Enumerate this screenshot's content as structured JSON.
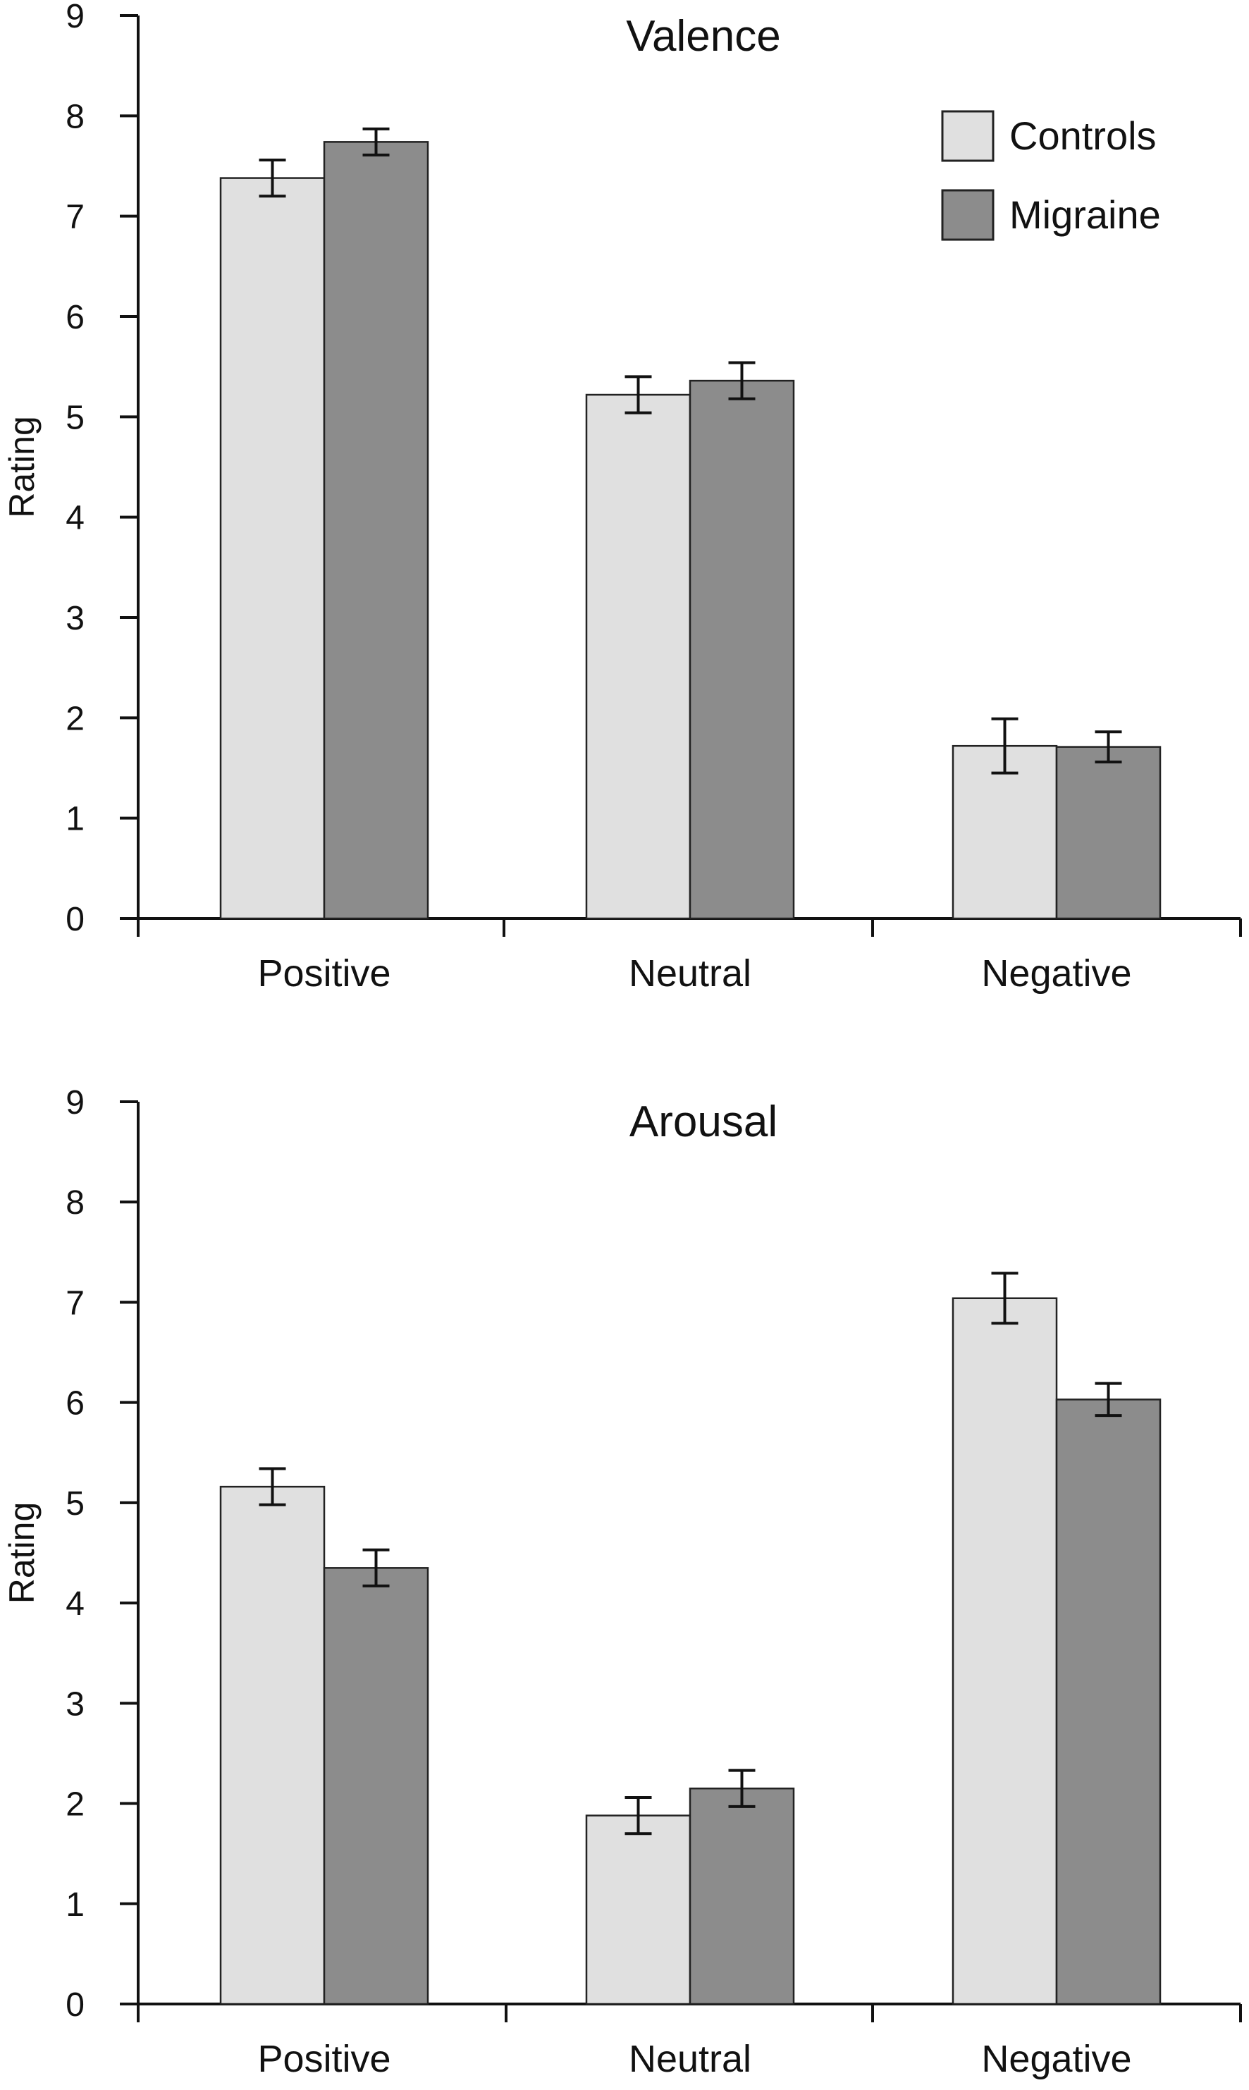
{
  "colors": {
    "controls": "#e0e0e0",
    "migraine": "#8c8c8c",
    "axis": "#111111",
    "error_bar": "#111111"
  },
  "legend": {
    "entries": [
      {
        "name": "Controls",
        "color_key": "controls"
      },
      {
        "name": "Migraine",
        "color_key": "migraine"
      }
    ]
  },
  "chart_data": [
    {
      "type": "bar",
      "title": "Valence",
      "xlabel": "",
      "ylabel": "Rating",
      "ylim": [
        0,
        9
      ],
      "yticks": [
        0,
        1,
        2,
        3,
        4,
        5,
        6,
        7,
        8,
        9
      ],
      "categories": [
        "Positive",
        "Neutral",
        "Negative"
      ],
      "grid": false,
      "legend_position": "top-right",
      "series": [
        {
          "name": "Controls",
          "values": [
            7.38,
            5.22,
            1.72
          ],
          "errors": [
            0.18,
            0.18,
            0.27
          ]
        },
        {
          "name": "Migraine",
          "values": [
            7.74,
            5.36,
            1.71
          ],
          "errors": [
            0.13,
            0.18,
            0.15
          ]
        }
      ]
    },
    {
      "type": "bar",
      "title": "Arousal",
      "xlabel": "",
      "ylabel": "Rating",
      "ylim": [
        0,
        9
      ],
      "yticks": [
        0,
        1,
        2,
        3,
        4,
        5,
        6,
        7,
        8,
        9
      ],
      "categories": [
        "Positive",
        "Neutral",
        "Negative"
      ],
      "grid": false,
      "legend_position": "none",
      "series": [
        {
          "name": "Controls",
          "values": [
            5.16,
            1.88,
            7.04
          ],
          "errors": [
            0.18,
            0.18,
            0.25
          ]
        },
        {
          "name": "Migraine",
          "values": [
            4.35,
            2.15,
            6.03
          ],
          "errors": [
            0.18,
            0.18,
            0.16
          ]
        }
      ]
    }
  ]
}
